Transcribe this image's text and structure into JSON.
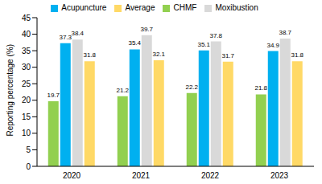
{
  "chart_data": {
    "type": "bar",
    "y_label": "Reporting percentage (%)",
    "categories": [
      "2020",
      "2021",
      "2022",
      "2023"
    ],
    "series": [
      {
        "name": "CHMF",
        "color": "#92D050",
        "values": [
          19.7,
          21.2,
          22.2,
          21.8
        ]
      },
      {
        "name": "Acupuncture",
        "color": "#00B0F0",
        "values": [
          37.3,
          35.4,
          35.1,
          34.9
        ]
      },
      {
        "name": "Moxibustion",
        "color": "#D9D9D9",
        "values": [
          38.4,
          39.7,
          37.8,
          38.7
        ]
      },
      {
        "name": "Average",
        "color": "#FFD966",
        "values": [
          31.8,
          32.1,
          31.7,
          31.8
        ]
      }
    ],
    "ylim": [
      0,
      45
    ],
    "yticks": [
      0,
      5,
      10,
      15,
      20,
      25,
      30,
      35,
      40,
      45
    ],
    "grid": false,
    "legend": "top",
    "data_labels": true
  }
}
